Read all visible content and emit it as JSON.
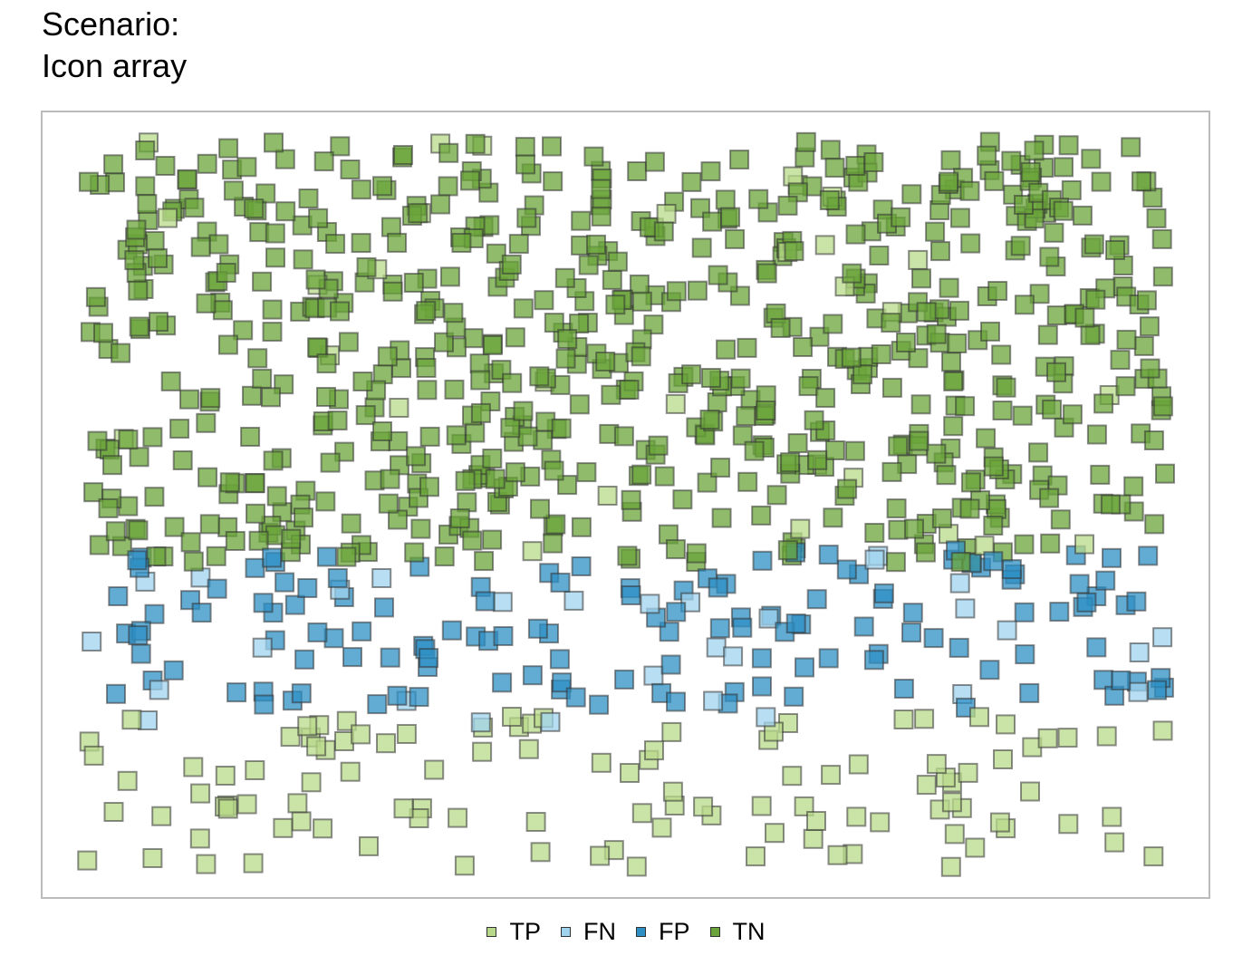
{
  "chart_data": {
    "type": "scatter",
    "title_line1": "Scenario:",
    "title_line2": "Icon array",
    "xlim": [
      0,
      1
    ],
    "ylim": [
      0,
      1
    ],
    "grid": false,
    "legend_position": "bottom",
    "marker": "square",
    "categories": [
      "TP",
      "FN",
      "FP",
      "TN"
    ],
    "colors": {
      "TP": "#b8d98a",
      "FN": "#9fd3ee",
      "FP": "#2e8fc4",
      "TN": "#6aa43a",
      "outline": "#333333",
      "frame": "#bbbbbb"
    },
    "counts": {
      "TP": 140,
      "FN": 30,
      "FP": 140,
      "TN": 690
    },
    "seed": 17,
    "region_note": "random positions; FN/FP occupy a middle horizontal band, TP lower band, TN upper region"
  },
  "legend": {
    "items": [
      {
        "key": "TP",
        "label": "TP"
      },
      {
        "key": "FN",
        "label": "FN"
      },
      {
        "key": "FP",
        "label": "FP"
      },
      {
        "key": "TN",
        "label": "TN"
      }
    ]
  }
}
